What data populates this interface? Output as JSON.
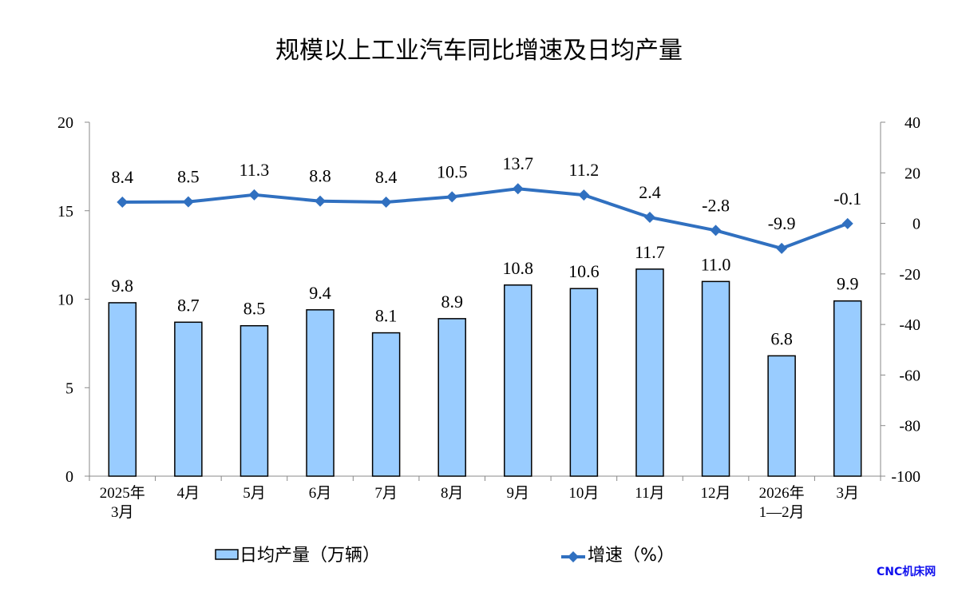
{
  "chart_data": {
    "type": "bar+line",
    "title": "规模以上工业汽车同比增速及日均产量",
    "categories": [
      "2025年\n3月",
      "4月",
      "5月",
      "6月",
      "7月",
      "8月",
      "9月",
      "10月",
      "11月",
      "12月",
      "2026年\n1—2月",
      "3月"
    ],
    "series": [
      {
        "name": "日均产量（万辆）",
        "type": "bar",
        "axis": "left",
        "color": "#99ccff",
        "values": [
          9.8,
          8.7,
          8.5,
          9.4,
          8.1,
          8.9,
          10.8,
          10.6,
          11.7,
          11.0,
          6.8,
          9.9
        ],
        "labels": [
          "9.8",
          "8.7",
          "8.5",
          "9.4",
          "8.1",
          "8.9",
          "10.8",
          "10.6",
          "11.7",
          "11.0",
          "6.8",
          "9.9"
        ]
      },
      {
        "name": "增速（%）",
        "type": "line",
        "axis": "right",
        "color": "#3070c0",
        "values": [
          8.4,
          8.5,
          11.3,
          8.8,
          8.4,
          10.5,
          13.7,
          11.2,
          2.4,
          -2.8,
          -9.9,
          -0.1
        ],
        "labels": [
          "8.4",
          "8.5",
          "11.3",
          "8.8",
          "8.4",
          "10.5",
          "13.7",
          "11.2",
          "2.4",
          "-2.8",
          "-9.9",
          "-0.1"
        ]
      }
    ],
    "left_axis": {
      "ylim": [
        0,
        20
      ],
      "ticks": [
        "0",
        "5",
        "10",
        "15",
        "20"
      ]
    },
    "right_axis": {
      "ylim": [
        -100,
        40
      ],
      "ticks": [
        "-100",
        "-80",
        "-60",
        "-40",
        "-20",
        "0",
        "20",
        "40"
      ]
    },
    "grid": false,
    "legend": "bottom"
  },
  "watermark": "CNC机床网"
}
